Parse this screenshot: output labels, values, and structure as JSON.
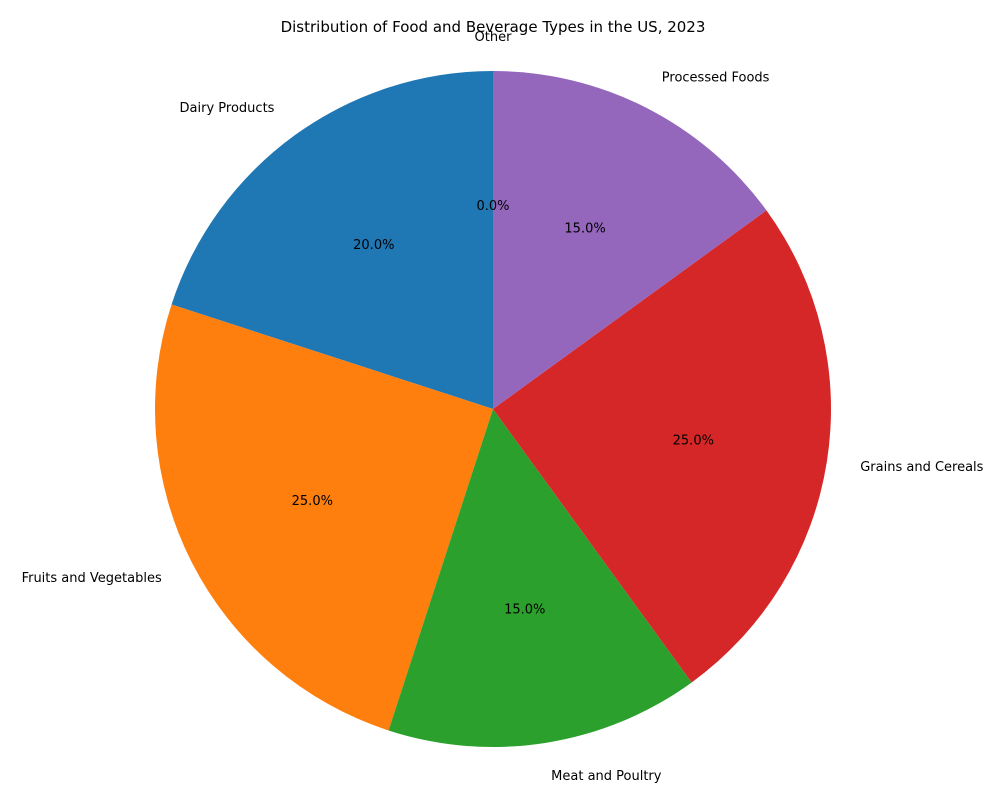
{
  "chart_data": {
    "type": "pie",
    "title": "Distribution of Food and Beverage Types in the US, 2023",
    "start_angle_deg": 90,
    "direction": "counterclockwise",
    "slices": [
      {
        "label": "Dairy Products",
        "value": 20.0,
        "pct_label": "20.0%",
        "color": "#1f77b4"
      },
      {
        "label": "Fruits and Vegetables",
        "value": 25.0,
        "pct_label": "25.0%",
        "color": "#ff7f0e"
      },
      {
        "label": "Meat and Poultry",
        "value": 15.0,
        "pct_label": "15.0%",
        "color": "#2ca02c"
      },
      {
        "label": "Grains and Cereals",
        "value": 25.0,
        "pct_label": "25.0%",
        "color": "#d62728"
      },
      {
        "label": "Processed Foods",
        "value": 15.0,
        "pct_label": "15.0%",
        "color": "#9467bd"
      },
      {
        "label": "Other",
        "value": 0.0,
        "pct_label": "0.0%",
        "color": "#8c564b"
      }
    ]
  }
}
